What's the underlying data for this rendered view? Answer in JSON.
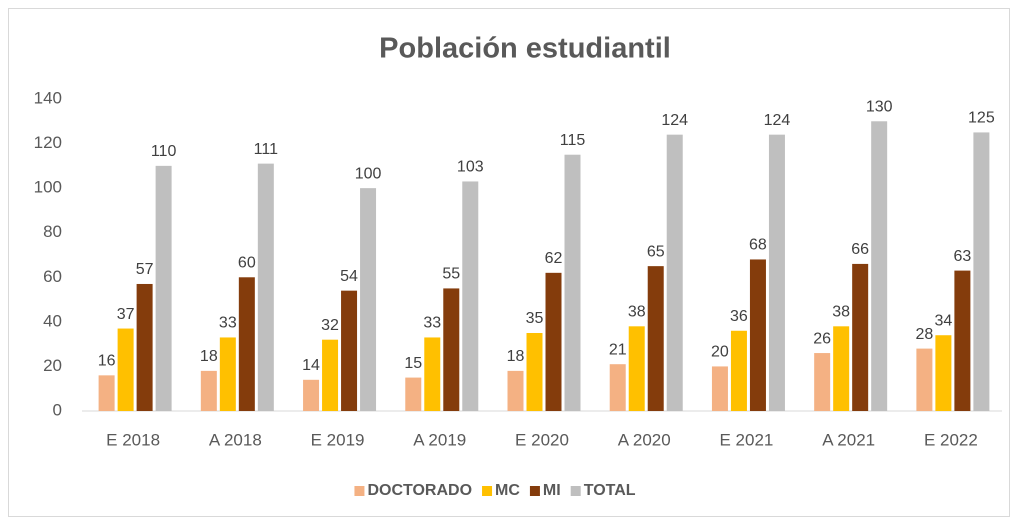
{
  "chart_data": {
    "type": "bar",
    "title": "Población estudiantil",
    "categories": [
      "E 2018",
      "A 2018",
      "E 2019",
      "A 2019",
      "E 2020",
      "A 2020",
      "E 2021",
      "A 2021",
      "E 2022"
    ],
    "series": [
      {
        "name": "DOCTORADO",
        "color": "#f4b183",
        "values": [
          16,
          18,
          14,
          15,
          18,
          21,
          20,
          26,
          28
        ]
      },
      {
        "name": "MC",
        "color": "#ffc000",
        "values": [
          37,
          33,
          32,
          33,
          35,
          38,
          36,
          38,
          34
        ]
      },
      {
        "name": "MI",
        "color": "#843c0c",
        "values": [
          57,
          60,
          54,
          55,
          62,
          65,
          68,
          66,
          63
        ]
      },
      {
        "name": "TOTAL",
        "color": "#bfbfbf",
        "values": [
          110,
          111,
          100,
          103,
          115,
          124,
          124,
          130,
          125
        ]
      }
    ],
    "ylim": [
      0,
      140
    ],
    "yticks": [
      0,
      20,
      40,
      60,
      80,
      100,
      120,
      140
    ],
    "grid": false,
    "legend": "bottom"
  }
}
